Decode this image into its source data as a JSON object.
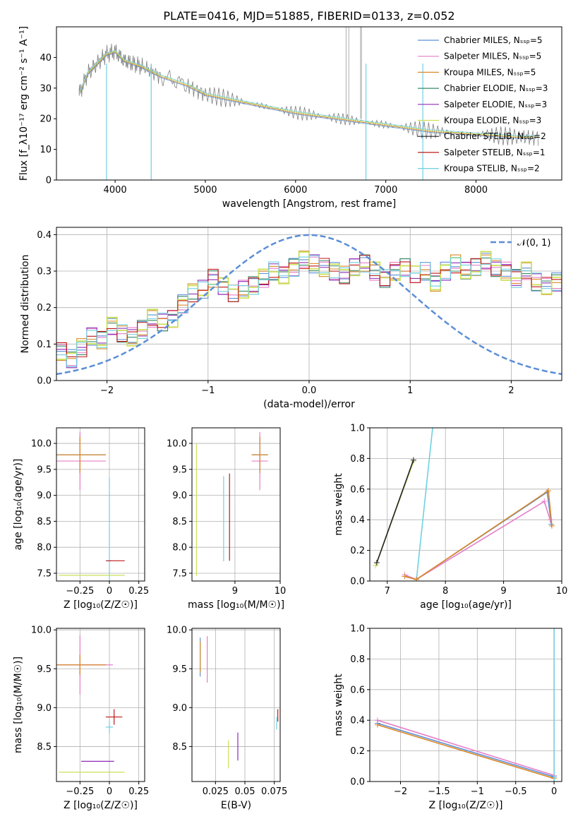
{
  "figure_title": "PLATE=0416, MJD=51885, FIBERID=0133, z=0.052",
  "colors": {
    "Chabrier MILES": "#5b8ed6",
    "Salpeter MILES": "#e67ec8",
    "Kroupa MILES": "#d98a2a",
    "Chabrier ELODIE": "#3a8a6a",
    "Salpeter ELODIE": "#8e2bb8",
    "Kroupa ELODIE": "#cce05a",
    "Chabrier STELIB": "#222222",
    "Salpeter STELIB": "#c01818",
    "Kroupa STELIB": "#6fd0e0",
    "data": "#808080",
    "normal": "#5b8ed6"
  },
  "chart_data": [
    {
      "type": "line",
      "id": "spectrum",
      "xlabel": "wavelength [Angstrom, rest frame]",
      "ylabel": "Flux [f_λ10⁻¹⁷ erg cm⁻² s⁻¹ A⁻¹]",
      "xlim": [
        3350,
        8950
      ],
      "ylim": [
        0,
        50
      ],
      "xticks": [
        4000,
        5000,
        6000,
        7000,
        8000
      ],
      "yticks": [
        0,
        10,
        20,
        30,
        40
      ],
      "legend_position": "right",
      "data_continuum": {
        "x": [
          3600,
          3700,
          3800,
          3900,
          4000,
          4100,
          4200,
          4300,
          4500,
          4800,
          5000,
          5500,
          6000,
          6500,
          7000,
          7500,
          8000,
          8500,
          8700
        ],
        "y": [
          28,
          35,
          38,
          41,
          42,
          39,
          38,
          37,
          34,
          31,
          28,
          25,
          22,
          20,
          18,
          16,
          15,
          14,
          14
        ]
      },
      "series": [
        {
          "name": "Chabrier MILES, N_SSP=5"
        },
        {
          "name": "Salpeter MILES, N_SSP=5"
        },
        {
          "name": "Kroupa MILES, N_SSP=5"
        },
        {
          "name": "Chabrier ELODIE, N_SSP=3"
        },
        {
          "name": "Salpeter ELODIE, N_SSP=3"
        },
        {
          "name": "Kroupa ELODIE, N_SSP=3"
        },
        {
          "name": "Chabrier STELIB, N_SSP=2"
        },
        {
          "name": "Salpeter STELIB, N_SSP=1"
        },
        {
          "name": "Kroupa STELIB, N_SSP=2"
        }
      ]
    },
    {
      "type": "step",
      "id": "residuals",
      "xlabel": "(data-model)/error",
      "ylabel": "Normed distribution",
      "xlim": [
        -2.5,
        2.5
      ],
      "ylim": [
        0,
        0.42
      ],
      "xticks": [
        -2,
        -1,
        0,
        1,
        2
      ],
      "yticks": [
        0.0,
        0.1,
        0.2,
        0.3,
        0.4
      ],
      "grid": true,
      "legend": "𝒩(0, 1)",
      "legend_position": "top-right",
      "bins_start": -2.5,
      "bin_width": 0.1,
      "hist_values": [
        0.08,
        0.06,
        0.09,
        0.12,
        0.11,
        0.15,
        0.13,
        0.12,
        0.14,
        0.17,
        0.16,
        0.17,
        0.21,
        0.24,
        0.25,
        0.28,
        0.26,
        0.24,
        0.25,
        0.26,
        0.28,
        0.3,
        0.29,
        0.31,
        0.33,
        0.32,
        0.31,
        0.3,
        0.29,
        0.31,
        0.32,
        0.3,
        0.28,
        0.3,
        0.31,
        0.29,
        0.3,
        0.27,
        0.3,
        0.32,
        0.3,
        0.31,
        0.33,
        0.31,
        0.3,
        0.28,
        0.3,
        0.27,
        0.26,
        0.27,
        0.25
      ]
    },
    {
      "type": "scatter",
      "id": "age-vs-z",
      "xlabel": "Z [log₁₀(Z/Z☉)]",
      "ylabel": "age  [log₁₀(age/yr)]",
      "xlim": [
        -0.45,
        0.3
      ],
      "ylim": [
        7.35,
        10.3
      ],
      "xticks": [
        -0.25,
        0.0,
        0.25
      ],
      "yticks": [
        7.5,
        8.0,
        8.5,
        9.0,
        9.5,
        10.0
      ],
      "grid": true,
      "points": [
        {
          "series": "Chabrier MILES",
          "x": -0.25,
          "y": 9.78,
          "xerr": 0.22,
          "yerr": 0.35
        },
        {
          "series": "Salpeter MILES",
          "x": -0.25,
          "y": 9.66,
          "xerr": 0.22,
          "yerr": 0.56
        },
        {
          "series": "Kroupa MILES",
          "x": -0.25,
          "y": 9.78,
          "xerr": 0.22,
          "yerr": 0.35
        },
        {
          "series": "Kroupa STELIB",
          "x": 0.0,
          "y": 7.74,
          "xerr": 0.02,
          "yerr": 1.6
        },
        {
          "series": "Salpeter STELIB",
          "x": 0.05,
          "y": 7.74,
          "xerr": 0.08,
          "yerr": 0.0
        },
        {
          "series": "Kroupa ELODIE",
          "x": -0.15,
          "y": 7.46,
          "xerr": 0.28,
          "yerr": 0.0
        }
      ]
    },
    {
      "type": "scatter",
      "id": "age-vs-mass",
      "xlabel": "mass [log₁₀(M/M☉)]",
      "ylabel": "",
      "xlim": [
        8.05,
        10.0
      ],
      "ylim": [
        7.35,
        10.3
      ],
      "xticks": [
        9,
        10
      ],
      "yticks": [
        7.5,
        8.0,
        8.5,
        9.0,
        9.5,
        10.0
      ],
      "grid": true,
      "points": [
        {
          "series": "Chabrier MILES",
          "x": 9.55,
          "y": 9.78,
          "xerr": 0.18,
          "yerr": 0.35
        },
        {
          "series": "Salpeter MILES",
          "x": 9.55,
          "y": 9.66,
          "xerr": 0.18,
          "yerr": 0.56
        },
        {
          "series": "Kroupa MILES",
          "x": 9.55,
          "y": 9.78,
          "xerr": 0.18,
          "yerr": 0.35
        },
        {
          "series": "Kroupa STELIB",
          "x": 8.75,
          "y": 8.55,
          "xerr": 0.0,
          "yerr": 0.82
        },
        {
          "series": "Salpeter STELIB",
          "x": 8.88,
          "y": 8.58,
          "xerr": 0.0,
          "yerr": 0.84
        },
        {
          "series": "Kroupa ELODIE",
          "x": 8.15,
          "y": 8.72,
          "xerr": 0.0,
          "yerr": 1.27
        }
      ]
    },
    {
      "type": "line",
      "id": "weight-vs-age",
      "xlabel": "age  [log₁₀(age/yr)]",
      "ylabel": "mass weight",
      "xlim": [
        6.7,
        10.0
      ],
      "ylim": [
        0,
        1.0
      ],
      "xticks": [
        7,
        8,
        9,
        10
      ],
      "yticks": [
        0.0,
        0.2,
        0.4,
        0.6,
        0.8,
        1.0
      ],
      "grid": true,
      "series": [
        {
          "series": "Kroupa ELODIE",
          "x": [
            6.8,
            7.45
          ],
          "y": [
            0.1,
            0.78
          ]
        },
        {
          "series": "Chabrier STELIB",
          "x": [
            6.82,
            7.45
          ],
          "y": [
            0.12,
            0.79
          ]
        },
        {
          "series": "Kroupa STELIB",
          "x": [
            7.5,
            7.78
          ],
          "y": [
            0.0,
            1.0
          ]
        },
        {
          "series": "Chabrier MILES",
          "x": [
            7.3,
            7.5,
            9.75,
            9.82
          ],
          "y": [
            0.03,
            0.01,
            0.58,
            0.37
          ]
        },
        {
          "series": "Salpeter MILES",
          "x": [
            7.3,
            7.5,
            9.7,
            9.8
          ],
          "y": [
            0.04,
            0.01,
            0.52,
            0.4
          ]
        },
        {
          "series": "Kroupa MILES",
          "x": [
            7.3,
            7.5,
            9.77,
            9.83
          ],
          "y": [
            0.03,
            0.01,
            0.59,
            0.36
          ]
        }
      ]
    },
    {
      "type": "scatter",
      "id": "mass-vs-z",
      "xlabel": "Z [log₁₀(Z/Z☉)]",
      "ylabel": "mass [log₁₀(M/M☉)]",
      "xlim": [
        -0.45,
        0.3
      ],
      "ylim": [
        8.05,
        10.02
      ],
      "xticks": [
        -0.25,
        0.0,
        0.25
      ],
      "yticks": [
        8.5,
        9.0,
        9.5,
        10.0
      ],
      "grid": true,
      "points": [
        {
          "series": "Chabrier MILES",
          "x": -0.25,
          "y": 9.55,
          "xerr": 0.22,
          "yerr": 0.13
        },
        {
          "series": "Salpeter MILES",
          "x": -0.25,
          "y": 9.55,
          "xerr": 0.28,
          "yerr": 0.38
        },
        {
          "series": "Kroupa MILES",
          "x": -0.25,
          "y": 9.55,
          "xerr": 0.22,
          "yerr": 0.13
        },
        {
          "series": "Salpeter STELIB",
          "x": 0.04,
          "y": 8.88,
          "xerr": 0.07,
          "yerr": 0.1
        },
        {
          "series": "Kroupa STELIB",
          "x": 0.0,
          "y": 8.75,
          "xerr": 0.03,
          "yerr": 0.08
        },
        {
          "series": "Salpeter ELODIE",
          "x": -0.1,
          "y": 8.31,
          "xerr": 0.14,
          "yerr": 0.0
        },
        {
          "series": "Kroupa ELODIE",
          "x": -0.15,
          "y": 8.17,
          "xerr": 0.28,
          "yerr": 0.0
        }
      ]
    },
    {
      "type": "scatter",
      "id": "mass-vs-ebv",
      "xlabel": "E(B-V)",
      "ylabel": "",
      "xlim": [
        0.005,
        0.08
      ],
      "ylim": [
        8.05,
        10.02
      ],
      "xticks": [
        0.025,
        0.05,
        0.075
      ],
      "yticks": [
        8.5,
        9.0,
        9.5,
        10.0
      ],
      "grid": true,
      "points": [
        {
          "series": "Chabrier MILES",
          "x": 0.012,
          "y": 9.65,
          "xerr": 0.0,
          "yerr": 0.25
        },
        {
          "series": "Salpeter MILES",
          "x": 0.018,
          "y": 9.62,
          "xerr": 0.0,
          "yerr": 0.3
        },
        {
          "series": "Kroupa MILES",
          "x": 0.012,
          "y": 9.65,
          "xerr": 0.0,
          "yerr": 0.2
        },
        {
          "series": "Kroupa ELODIE",
          "x": 0.036,
          "y": 8.4,
          "xerr": 0.0,
          "yerr": 0.18
        },
        {
          "series": "Salpeter ELODIE",
          "x": 0.044,
          "y": 8.5,
          "xerr": 0.0,
          "yerr": 0.18
        },
        {
          "series": "Salpeter STELIB",
          "x": 0.078,
          "y": 8.9,
          "xerr": 0.0,
          "yerr": 0.08
        },
        {
          "series": "Kroupa STELIB",
          "x": 0.077,
          "y": 8.8,
          "xerr": 0.0,
          "yerr": 0.08
        }
      ]
    },
    {
      "type": "line",
      "id": "weight-vs-z",
      "xlabel": "Z [log₁₀(Z/Z☉)]",
      "ylabel": "mass weight",
      "xlim": [
        -2.4,
        0.1
      ],
      "ylim": [
        0,
        1.0
      ],
      "xticks": [
        -2.0,
        -1.5,
        -1.0,
        -0.5,
        0.0
      ],
      "yticks": [
        0.0,
        0.2,
        0.4,
        0.6,
        0.8,
        1.0
      ],
      "grid": true,
      "series": [
        {
          "series": "Salpeter MILES",
          "x": [
            -2.3,
            0.0
          ],
          "y": [
            0.4,
            0.04
          ]
        },
        {
          "series": "Chabrier MILES",
          "x": [
            -2.3,
            0.0
          ],
          "y": [
            0.38,
            0.03
          ]
        },
        {
          "series": "Kroupa MILES",
          "x": [
            -2.3,
            0.0
          ],
          "y": [
            0.37,
            0.02
          ]
        },
        {
          "series": "Kroupa STELIB",
          "x": [
            0.0,
            0.0
          ],
          "y": [
            0.0,
            1.0
          ]
        }
      ]
    }
  ]
}
